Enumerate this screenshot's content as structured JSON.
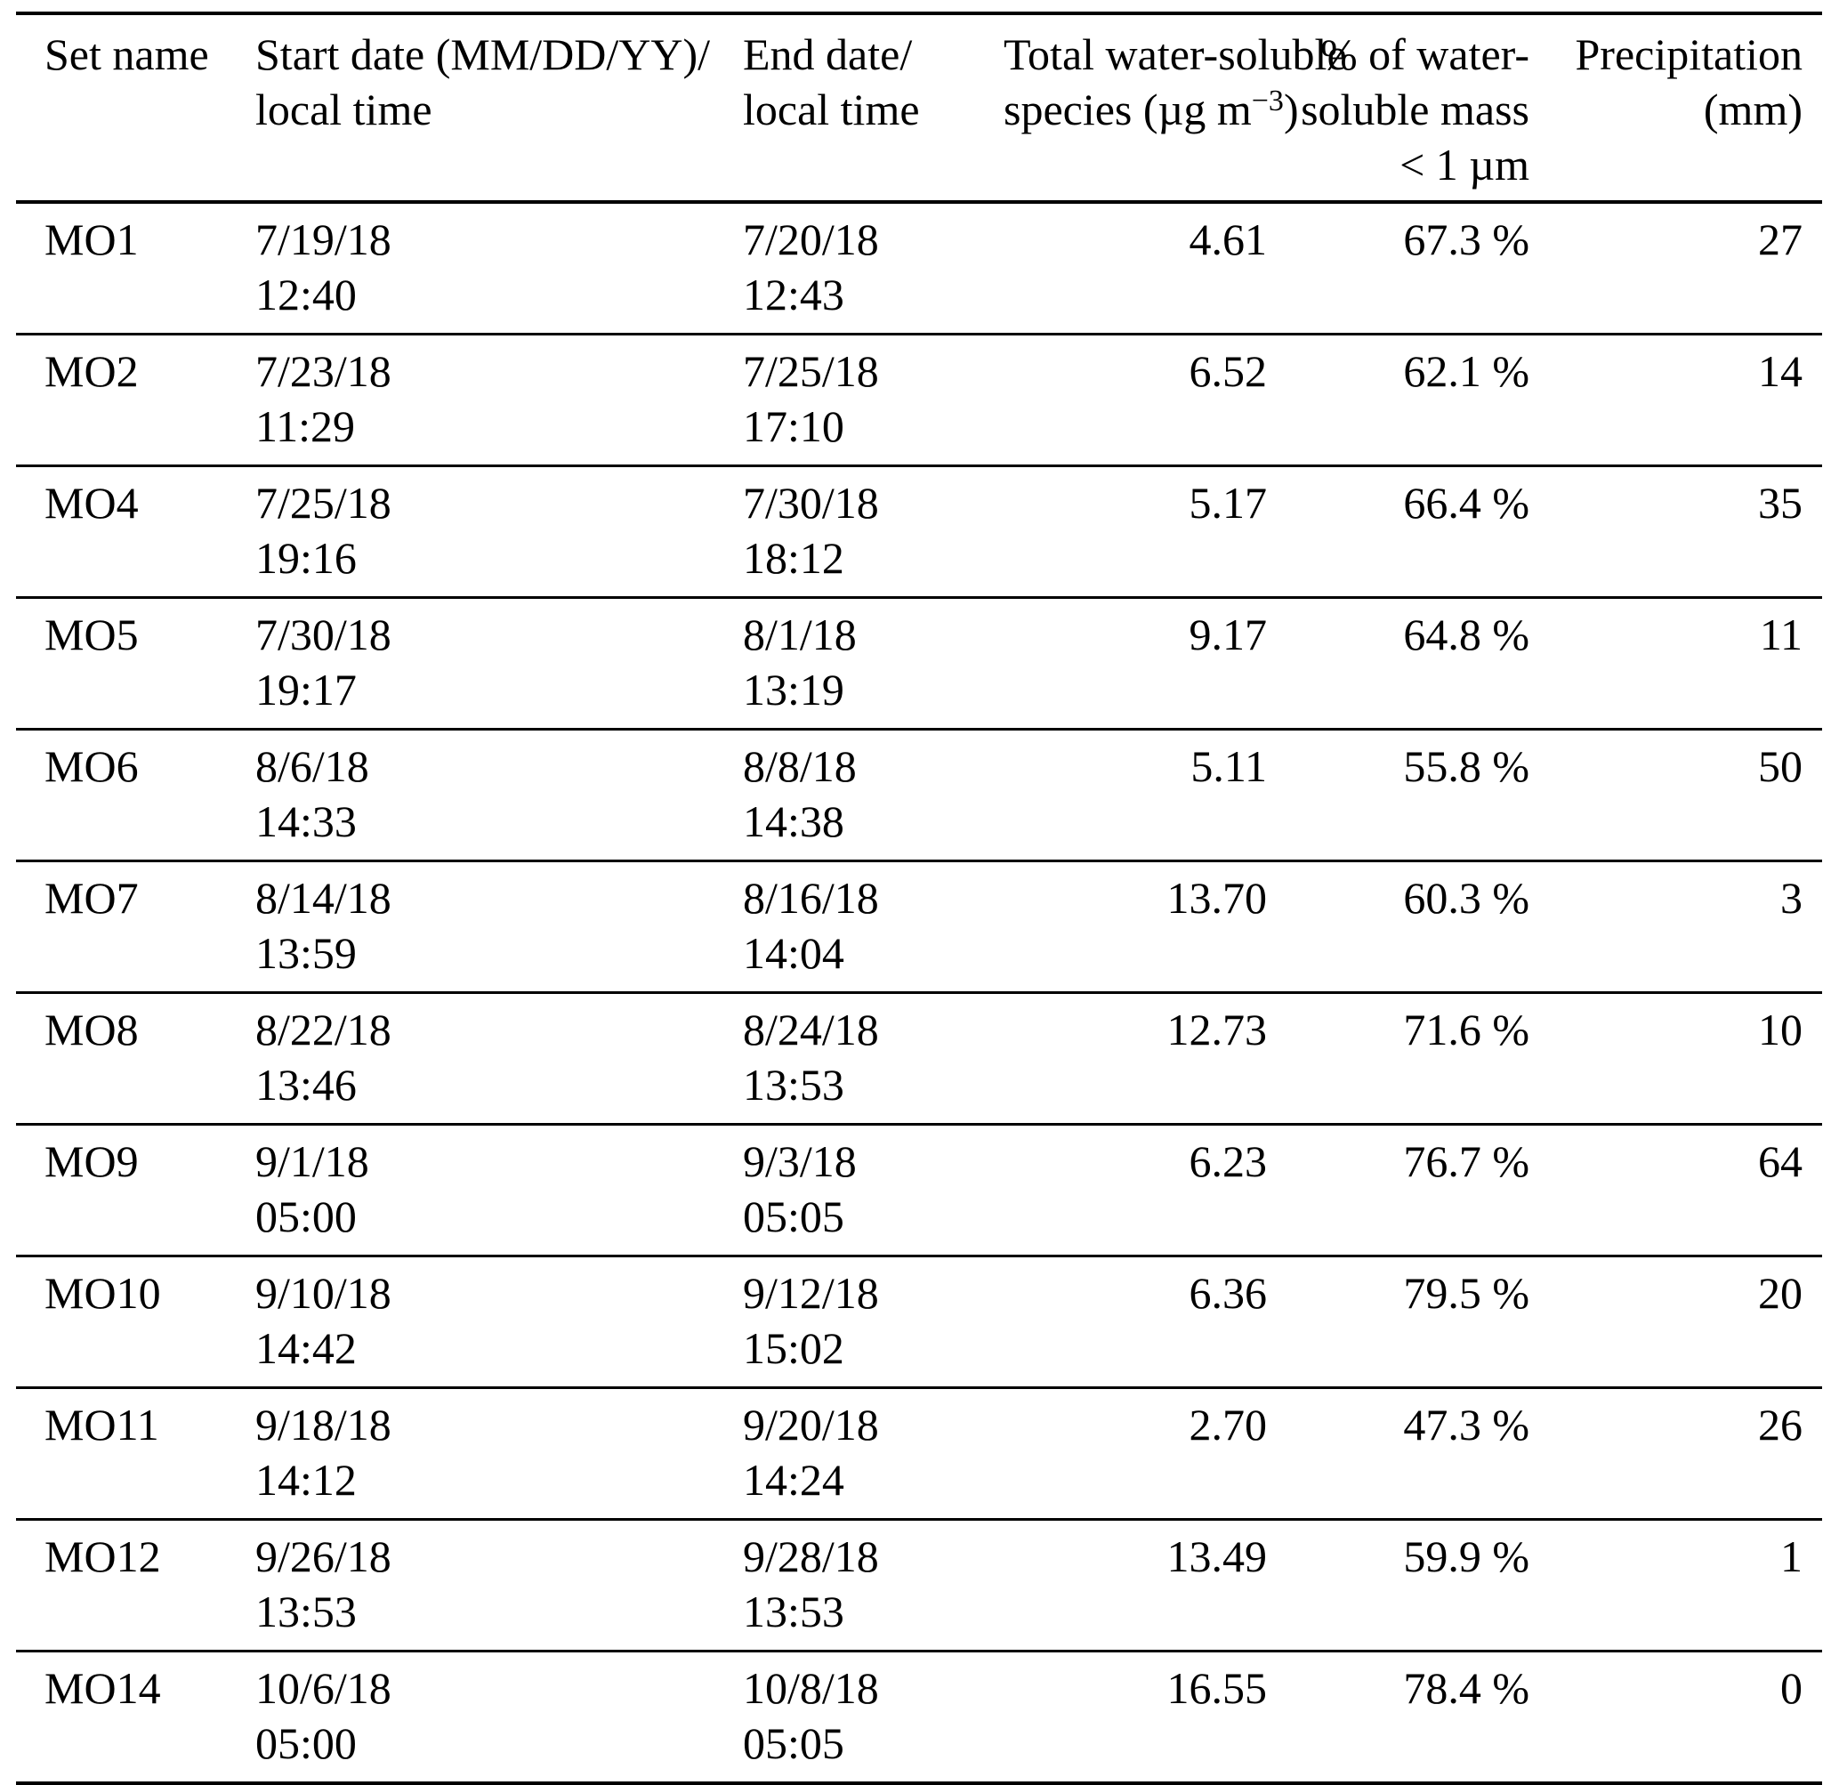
{
  "header": {
    "set_name": "Set name",
    "start_line1": "Start date (MM/DD/YY)/",
    "start_line2": "local time",
    "end_line1": "End date/",
    "end_line2": "local time",
    "total_line1": "Total water-soluble",
    "total_line2_pre": "species (µg m",
    "total_line2_sup": "−3",
    "total_line2_post": ")",
    "pct_line1": "% of water-",
    "pct_line2": "soluble mass",
    "pct_line3": "< 1 µm",
    "precip_line1": "Precipitation",
    "precip_line2": "(mm)"
  },
  "rows": [
    {
      "set_name": "MO1",
      "start_date": "7/19/18",
      "start_time": "12:40",
      "end_date": "7/20/18",
      "end_time": "12:43",
      "total": "4.61",
      "pct": "67.3 %",
      "precip": "27"
    },
    {
      "set_name": "MO2",
      "start_date": "7/23/18",
      "start_time": "11:29",
      "end_date": "7/25/18",
      "end_time": "17:10",
      "total": "6.52",
      "pct": "62.1 %",
      "precip": "14"
    },
    {
      "set_name": "MO4",
      "start_date": "7/25/18",
      "start_time": "19:16",
      "end_date": "7/30/18",
      "end_time": "18:12",
      "total": "5.17",
      "pct": "66.4 %",
      "precip": "35"
    },
    {
      "set_name": "MO5",
      "start_date": "7/30/18",
      "start_time": "19:17",
      "end_date": "8/1/18",
      "end_time": "13:19",
      "total": "9.17",
      "pct": "64.8 %",
      "precip": "11"
    },
    {
      "set_name": "MO6",
      "start_date": "8/6/18",
      "start_time": "14:33",
      "end_date": "8/8/18",
      "end_time": "14:38",
      "total": "5.11",
      "pct": "55.8 %",
      "precip": "50"
    },
    {
      "set_name": "MO7",
      "start_date": "8/14/18",
      "start_time": "13:59",
      "end_date": "8/16/18",
      "end_time": "14:04",
      "total": "13.70",
      "pct": "60.3 %",
      "precip": "3"
    },
    {
      "set_name": "MO8",
      "start_date": "8/22/18",
      "start_time": "13:46",
      "end_date": "8/24/18",
      "end_time": "13:53",
      "total": "12.73",
      "pct": "71.6 %",
      "precip": "10"
    },
    {
      "set_name": "MO9",
      "start_date": "9/1/18",
      "start_time": "05:00",
      "end_date": "9/3/18",
      "end_time": "05:05",
      "total": "6.23",
      "pct": "76.7 %",
      "precip": "64"
    },
    {
      "set_name": "MO10",
      "start_date": "9/10/18",
      "start_time": "14:42",
      "end_date": "9/12/18",
      "end_time": "15:02",
      "total": "6.36",
      "pct": "79.5 %",
      "precip": "20"
    },
    {
      "set_name": "MO11",
      "start_date": "9/18/18",
      "start_time": "14:12",
      "end_date": "9/20/18",
      "end_time": "14:24",
      "total": "2.70",
      "pct": "47.3 %",
      "precip": "26"
    },
    {
      "set_name": "MO12",
      "start_date": "9/26/18",
      "start_time": "13:53",
      "end_date": "9/28/18",
      "end_time": "13:53",
      "total": "13.49",
      "pct": "59.9 %",
      "precip": "1"
    },
    {
      "set_name": "MO14",
      "start_date": "10/6/18",
      "start_time": "05:00",
      "end_date": "10/8/18",
      "end_time": "05:05",
      "total": "16.55",
      "pct": "78.4 %",
      "precip": "0"
    }
  ],
  "colors": {
    "text": "#000000",
    "background": "#ffffff",
    "rule": "#000000"
  }
}
